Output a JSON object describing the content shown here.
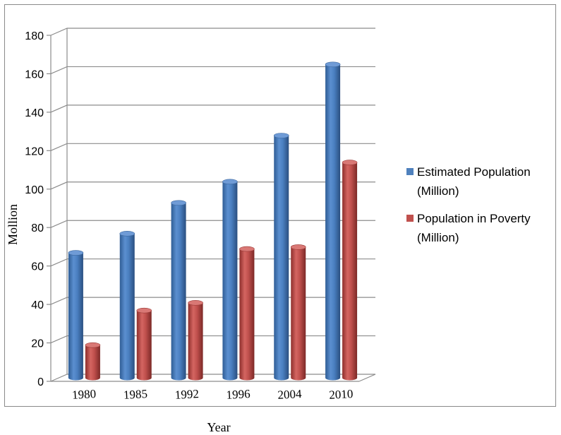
{
  "chart_data": {
    "type": "bar",
    "style": "3d-cylinder",
    "title": "",
    "xlabel": "Year",
    "ylabel": "Mollion",
    "ylim": [
      0,
      180
    ],
    "yticks": [
      0,
      20,
      40,
      60,
      80,
      100,
      120,
      140,
      160,
      180
    ],
    "categories": [
      "1980",
      "1985",
      "1992",
      "1996",
      "2004",
      "2010"
    ],
    "series": [
      {
        "name": "Estimated Population (Million)",
        "name_lines": [
          "Estimated Population",
          "(Million)"
        ],
        "color": "#4F81BD",
        "values": [
          65,
          75,
          91,
          102,
          126,
          163
        ]
      },
      {
        "name": "Population in Poverty (Million)",
        "name_lines": [
          "Population in Poverty",
          "(Million)"
        ],
        "color": "#C0504D",
        "values": [
          17,
          35,
          39,
          67,
          68,
          112
        ]
      }
    ],
    "grid": true,
    "legend_position": "right"
  }
}
